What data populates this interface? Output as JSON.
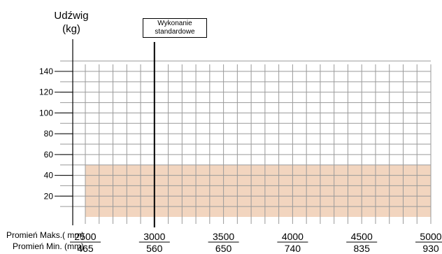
{
  "chart_data": {
    "type": "area",
    "ylabel_line1": "Udźwig",
    "ylabel_line2": "(kg)",
    "yticks": [
      20,
      40,
      60,
      80,
      100,
      120,
      140
    ],
    "ylim": [
      0,
      150
    ],
    "x_label_max": "Promień Maks.( mm)",
    "x_label_min": "Promień Min. (mm)",
    "x_ticks_max": [
      "2500",
      "3000",
      "3500",
      "4000",
      "4500",
      "5000"
    ],
    "x_ticks_min": [
      "465",
      "560",
      "650",
      "740",
      "835",
      "930"
    ],
    "marker_label": "Wykonanie standardowe",
    "marker_x": "3000",
    "series": [
      {
        "x_start": "2500",
        "x_end": "5000",
        "value": 50,
        "color": "#f2d5bf"
      }
    ],
    "grid": true
  }
}
